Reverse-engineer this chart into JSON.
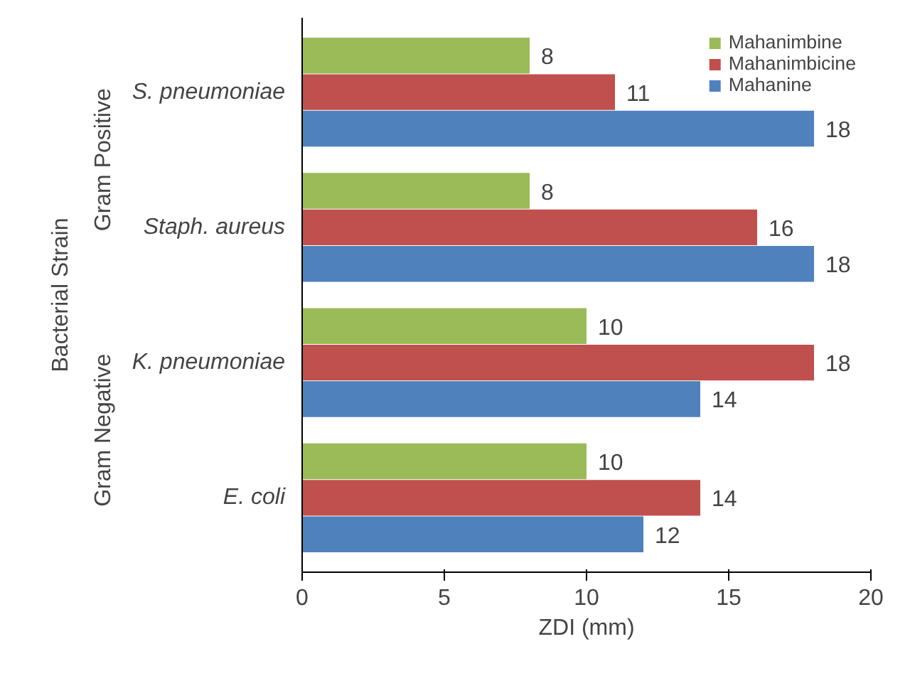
{
  "chart_data": {
    "type": "bar",
    "orientation": "horizontal",
    "xlabel": "ZDI (mm)",
    "ylabel": "Bacterial Strain",
    "categories": [
      "S. pneumoniae",
      "Staph. aureus",
      "K. pneumoniae",
      "E. coli"
    ],
    "series": [
      {
        "name": "Mahanimbine",
        "color": "#9bbb59",
        "values": [
          8,
          8,
          10,
          10
        ]
      },
      {
        "name": "Mahanimbicine",
        "color": "#c0504d",
        "values": [
          11,
          16,
          18,
          14
        ]
      },
      {
        "name": "Mahanine",
        "color": "#4f81bd",
        "values": [
          18,
          18,
          14,
          12
        ]
      }
    ],
    "xlim": [
      0,
      20
    ],
    "xticks": [
      0,
      5,
      10,
      15,
      20
    ],
    "annotations": [
      "Gram Positive",
      "Gram Negative"
    ],
    "data_labels": true,
    "legend": "top right",
    "grid": false
  }
}
